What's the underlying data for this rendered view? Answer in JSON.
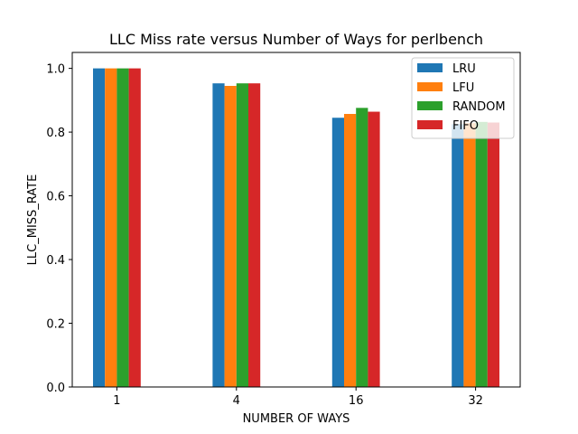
{
  "chart_data": {
    "type": "bar",
    "title": "LLC Miss rate versus Number of Ways for perlbench",
    "xlabel": "NUMBER OF WAYS",
    "ylabel": "LLC_MISS_RATE",
    "categories": [
      "1",
      "4",
      "16",
      "32"
    ],
    "ylim": [
      0,
      1.05
    ],
    "yticks": [
      "0.0",
      "0.2",
      "0.4",
      "0.6",
      "0.8",
      "1.0"
    ],
    "grid": false,
    "legend_position": "top-right",
    "series": [
      {
        "name": "LRU",
        "color": "#1f77b4",
        "values": [
          1.0,
          0.953,
          0.845,
          0.825
        ]
      },
      {
        "name": "LFU",
        "color": "#ff7f0e",
        "values": [
          1.0,
          0.945,
          0.857,
          0.828
        ]
      },
      {
        "name": "RANDOM",
        "color": "#2ca02c",
        "values": [
          1.0,
          0.953,
          0.876,
          0.832
        ]
      },
      {
        "name": "FIFO",
        "color": "#d62728",
        "values": [
          1.0,
          0.953,
          0.864,
          0.83
        ]
      }
    ]
  }
}
